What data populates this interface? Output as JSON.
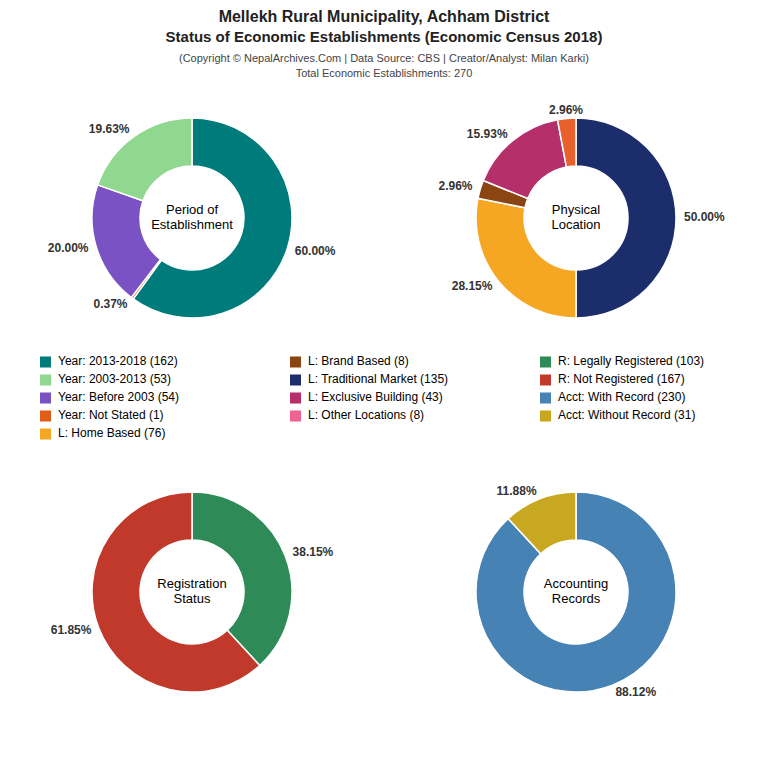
{
  "title": "Mellekh Rural Municipality, Achham District\nStatus of Economic Establishments (Economic Census 2018)",
  "subtitle": "(Copyright © NepalArchives.Com | Data Source: CBS | Creator/Analyst: Milan Karki)\nTotal Economic Establishments: 270",
  "chart_data": [
    {
      "type": "pie",
      "title": "Period of\nEstablishment",
      "values": [
        60.0,
        0.37,
        20.0,
        19.63
      ],
      "value_labels": [
        "60.00%",
        "0.37%",
        "20.00%",
        "19.63%"
      ],
      "colors": [
        "#007B7B",
        "#E05C1A",
        "#7B52C4",
        "#90D890"
      ],
      "data_labels": true
    },
    {
      "type": "pie",
      "title": "Physical\nLocation",
      "values": [
        50.0,
        28.15,
        2.96,
        15.93,
        2.96
      ],
      "value_labels": [
        "50.00%",
        "28.15%",
        "2.96%",
        "15.93%",
        "2.96%"
      ],
      "colors": [
        "#1C2D6B",
        "#F5A623",
        "#8B4513",
        "#B5306A",
        "#E8612C"
      ],
      "data_labels": true
    },
    {
      "type": "pie",
      "title": "Registration\nStatus",
      "values": [
        38.15,
        61.85
      ],
      "value_labels": [
        "38.15%",
        "61.85%"
      ],
      "colors": [
        "#2E8B57",
        "#C0392B"
      ],
      "data_labels": true
    },
    {
      "type": "pie",
      "title": "Accounting\nRecords",
      "values": [
        88.12,
        11.88
      ],
      "value_labels": [
        "88.12%",
        "11.88%"
      ],
      "colors": [
        "#4682B4",
        "#C8A820"
      ],
      "data_labels": true
    }
  ],
  "legend_items": [
    {
      "name": "Year: 2013-2018 (162)",
      "color": "#007B7B"
    },
    {
      "name": "Year: 2003-2013 (53)",
      "color": "#90D890"
    },
    {
      "name": "Year: Before 2003 (54)",
      "color": "#7B52C4"
    },
    {
      "name": "Year: Not Stated (1)",
      "color": "#E05C1A"
    },
    {
      "name": "L: Home Based (76)",
      "color": "#F5A623"
    },
    {
      "name": "L: Brand Based (8)",
      "color": "#8B4513"
    },
    {
      "name": "L: Traditional Market (135)",
      "color": "#1C2D6B"
    },
    {
      "name": "L: Exclusive Building (43)",
      "color": "#B5306A"
    },
    {
      "name": "L: Other Locations (8)",
      "color": "#F06292"
    },
    {
      "name": "R: Legally Registered (103)",
      "color": "#2E8B57"
    },
    {
      "name": "R: Not Registered (167)",
      "color": "#C0392B"
    },
    {
      "name": "Acct: With Record (230)",
      "color": "#4682B4"
    },
    {
      "name": "Acct: Without Record (31)",
      "color": "#C8A820"
    }
  ]
}
